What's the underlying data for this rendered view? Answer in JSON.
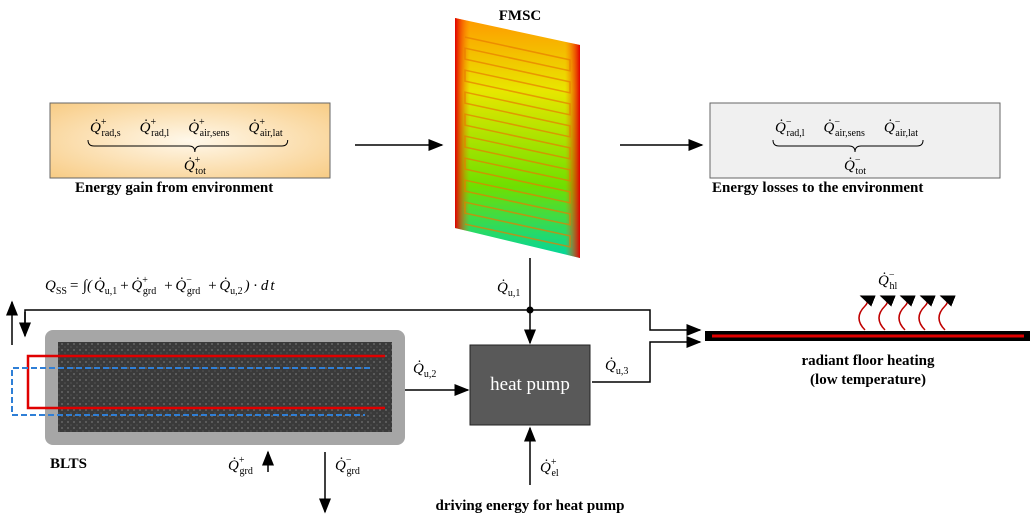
{
  "collector": {
    "title": "FMSC"
  },
  "gains": {
    "terms": [
      {
        "text": "Q̇",
        "sup": "+",
        "sub": "rad,s"
      },
      {
        "text": "Q̇",
        "sup": "+",
        "sub": "rad,l"
      },
      {
        "text": "Q̇",
        "sup": "+",
        "sub": "air,sens"
      },
      {
        "text": "Q̇",
        "sup": "+",
        "sub": "air,lat"
      }
    ],
    "total": {
      "text": "Q̇",
      "sup": "+",
      "sub": "tot"
    },
    "caption": "Energy gain from environment"
  },
  "losses": {
    "terms": [
      {
        "text": "Q̇",
        "sup": "−",
        "sub": "rad,l"
      },
      {
        "text": "Q̇",
        "sup": "−",
        "sub": "air,sens"
      },
      {
        "text": "Q̇",
        "sup": "−",
        "sub": "air,lat"
      }
    ],
    "total": {
      "text": "Q̇",
      "sup": "−",
      "sub": "tot"
    },
    "caption": "Energy losses to the environment"
  },
  "equation": [
    {
      "text": "Q",
      "sub": "SS"
    },
    {
      "text": " = ∫( "
    },
    {
      "text": "Q̇",
      "sub": "u,1"
    },
    {
      "text": " + "
    },
    {
      "text": "Q̇",
      "sup": "+",
      "sub": "grd"
    },
    {
      "text": " + "
    },
    {
      "text": "Q̇",
      "sup": "−",
      "sub": "grd"
    },
    {
      "text": " + "
    },
    {
      "text": "Q̇",
      "sub": "u,2"
    },
    {
      "text": " ) · d"
    },
    {
      "text": "t"
    }
  ],
  "flows": {
    "u1": {
      "text": "Q̇",
      "sub": "u,1"
    },
    "u2": {
      "text": "Q̇",
      "sub": "u,2"
    },
    "u3": {
      "text": "Q̇",
      "sub": "u,3"
    },
    "grd_in": {
      "text": "Q̇",
      "sup": "+",
      "sub": "grd"
    },
    "grd_out": {
      "text": "Q̇",
      "sup": "−",
      "sub": "grd"
    },
    "el": {
      "text": "Q̇",
      "sup": "+",
      "sub": "el"
    },
    "hl": {
      "text": "Q̇",
      "sup": "−",
      "sub": "hl"
    }
  },
  "heat_pump": {
    "label": "heat pump",
    "caption": "driving energy for heat pump"
  },
  "storage": {
    "label": "BLTS"
  },
  "floor": {
    "line1": "radiant floor heating",
    "line2": "(low temperature)"
  }
}
